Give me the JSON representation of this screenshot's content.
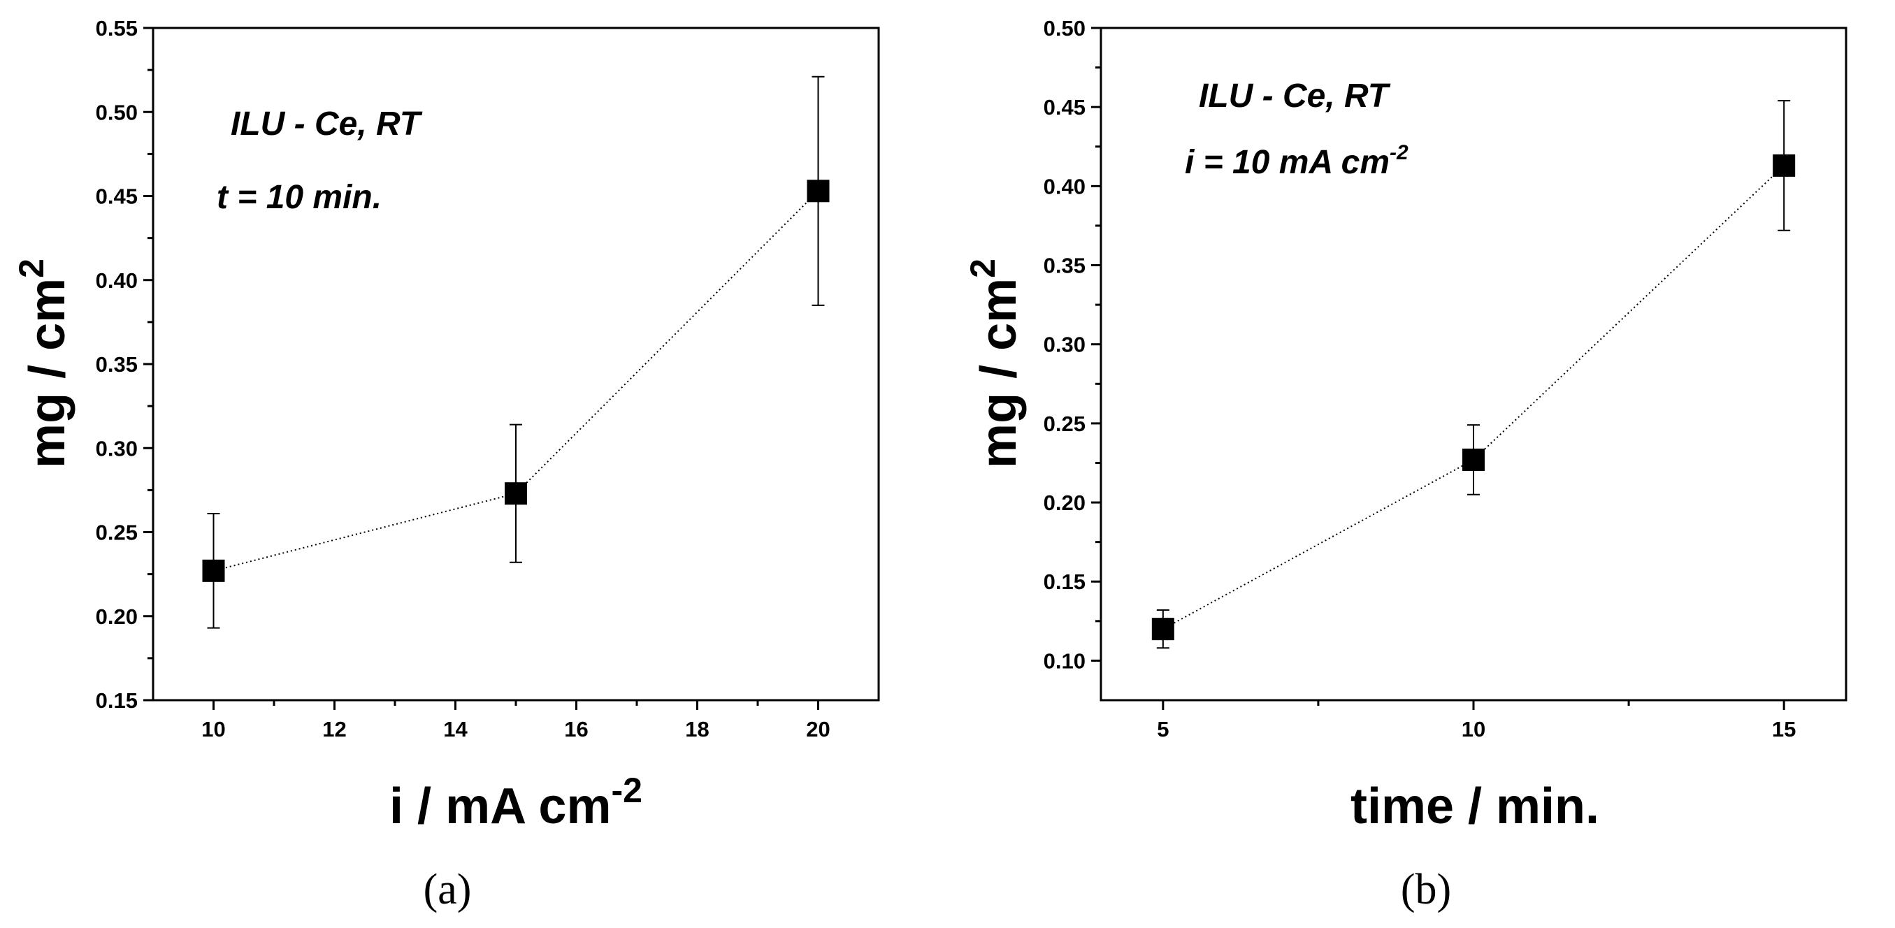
{
  "chart_data": [
    {
      "type": "scatter",
      "panel_label": "(a)",
      "xlabel": "i / mA cm",
      "xlabel_sup": "-2",
      "ylabel": "mg / cm",
      "ylabel_sup": "2",
      "xlim": [
        9,
        21
      ],
      "ylim": [
        0.15,
        0.55
      ],
      "xticks": [
        10,
        12,
        14,
        16,
        18,
        20
      ],
      "yticks": [
        0.15,
        0.2,
        0.25,
        0.3,
        0.35,
        0.4,
        0.45,
        0.5,
        0.55
      ],
      "ytick_labels": [
        "0.15",
        "0.20",
        "0.25",
        "0.30",
        "0.35",
        "0.40",
        "0.45",
        "0.50",
        "0.55"
      ],
      "annotations": [
        {
          "text": "ILU - Ce, RT",
          "sup": ""
        },
        {
          "text": "t = 10 min.",
          "sup": ""
        }
      ],
      "series": [
        {
          "x": [
            10,
            15,
            20
          ],
          "y": [
            0.227,
            0.273,
            0.453
          ],
          "err_low": [
            0.193,
            0.232,
            0.385
          ],
          "err_high": [
            0.261,
            0.314,
            0.521
          ],
          "line": "dotted",
          "marker": "square"
        }
      ]
    },
    {
      "type": "scatter",
      "panel_label": "(b)",
      "xlabel": "time / min.",
      "xlabel_sup": "",
      "ylabel": "mg / cm",
      "ylabel_sup": "2",
      "xlim": [
        4,
        16
      ],
      "ylim": [
        0.075,
        0.5
      ],
      "xticks": [
        5,
        10,
        15
      ],
      "yticks": [
        0.1,
        0.15,
        0.2,
        0.25,
        0.3,
        0.35,
        0.4,
        0.45,
        0.5
      ],
      "ytick_labels": [
        "0.10",
        "0.15",
        "0.20",
        "0.25",
        "0.30",
        "0.35",
        "0.40",
        "0.45",
        "0.50"
      ],
      "annotations": [
        {
          "text": "ILU - Ce, RT",
          "sup": ""
        },
        {
          "text": "i = 10 mA cm",
          "sup": "-2"
        }
      ],
      "series": [
        {
          "x": [
            5,
            10,
            15
          ],
          "y": [
            0.12,
            0.227,
            0.413
          ],
          "err_low": [
            0.108,
            0.205,
            0.372
          ],
          "err_high": [
            0.132,
            0.249,
            0.454
          ],
          "line": "dotted",
          "marker": "square"
        }
      ]
    }
  ]
}
